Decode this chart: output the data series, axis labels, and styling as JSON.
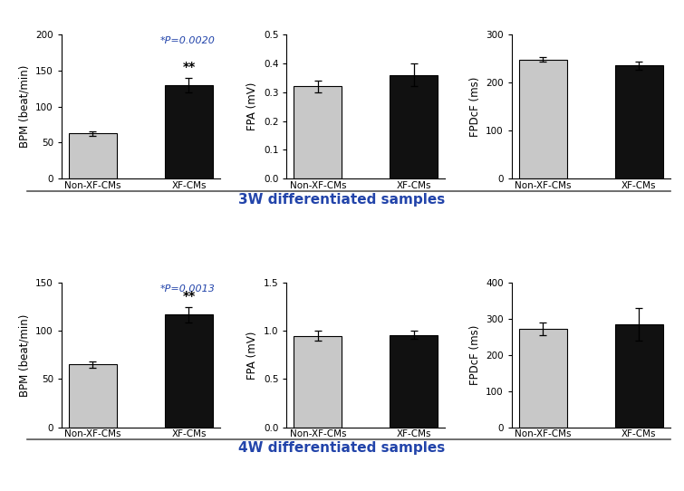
{
  "row1": {
    "bpm": {
      "categories": [
        "Non-XF-CMs",
        "XF-CMs"
      ],
      "values": [
        63,
        130
      ],
      "errors": [
        3,
        10
      ],
      "ylabel": "BPM (beat/min)",
      "ylim": [
        0,
        200
      ],
      "yticks": [
        0,
        50,
        100,
        150,
        200
      ],
      "pvalue_text": "*P=0.0020",
      "significance": "**"
    },
    "fpa": {
      "categories": [
        "Non-XF-CMs",
        "XF-CMs"
      ],
      "values": [
        0.32,
        0.36
      ],
      "errors": [
        0.02,
        0.04
      ],
      "ylabel": "FPA (mV)",
      "ylim": [
        0.0,
        0.5
      ],
      "yticks": [
        0.0,
        0.1,
        0.2,
        0.3,
        0.4,
        0.5
      ]
    },
    "fpdcf": {
      "categories": [
        "Non-XF-CMs",
        "XF-CMs"
      ],
      "values": [
        248,
        235
      ],
      "errors": [
        5,
        8
      ],
      "ylabel": "FPDcF (ms)",
      "ylim": [
        0,
        300
      ],
      "yticks": [
        0,
        100,
        200,
        300
      ]
    },
    "section_label": "3W differentiated samples"
  },
  "row2": {
    "bpm": {
      "categories": [
        "Non-XF-CMs",
        "XF-CMs"
      ],
      "values": [
        65,
        117
      ],
      "errors": [
        3,
        8
      ],
      "ylabel": "BPM (beat/min)",
      "ylim": [
        0,
        150
      ],
      "yticks": [
        0,
        50,
        100,
        150
      ],
      "pvalue_text": "*P=0.0013",
      "significance": "**"
    },
    "fpa": {
      "categories": [
        "Non-XF-CMs",
        "XF-CMs"
      ],
      "values": [
        0.95,
        0.96
      ],
      "errors": [
        0.05,
        0.04
      ],
      "ylabel": "FPA (mV)",
      "ylim": [
        0.0,
        1.5
      ],
      "yticks": [
        0.0,
        0.5,
        1.0,
        1.5
      ]
    },
    "fpdcf": {
      "categories": [
        "Non-XF-CMs",
        "XF-CMs"
      ],
      "values": [
        272,
        285
      ],
      "errors": [
        18,
        45
      ],
      "ylabel": "FPDcF (ms)",
      "ylim": [
        0,
        400
      ],
      "yticks": [
        0,
        100,
        200,
        300,
        400
      ]
    },
    "section_label": "4W differentiated samples"
  },
  "bar_colors": [
    "#c8c8c8",
    "#111111"
  ],
  "bar_edge_color": "#000000",
  "section_label_color": "#2244aa",
  "pvalue_color": "#2244aa",
  "background_color": "#ffffff",
  "tick_fontsize": 7.5,
  "label_fontsize": 8.5,
  "section_fontsize": 11,
  "pvalue_fontsize": 8,
  "sig_fontsize": 10
}
